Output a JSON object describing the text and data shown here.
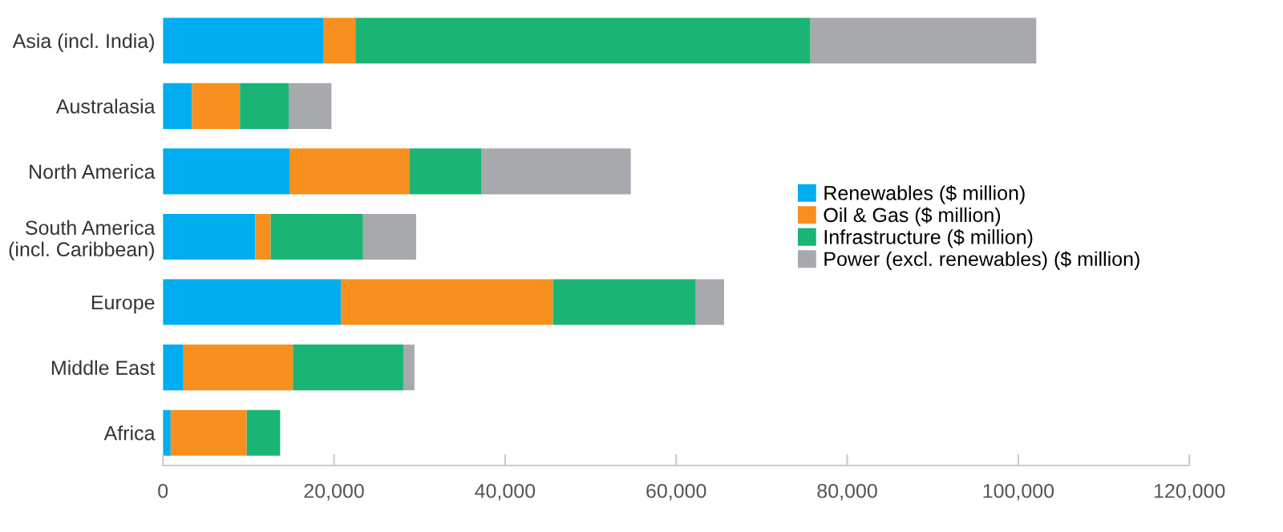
{
  "chart_data": {
    "type": "bar",
    "orientation": "horizontal",
    "stacked": true,
    "categories": [
      "Asia (incl. India)",
      "Australasia",
      "North America",
      "South America\n(incl. Caribbean)",
      "Europe",
      "Middle East",
      "Africa"
    ],
    "series": [
      {
        "name": "Renewables ($ million)",
        "color": "#00aeef",
        "values": [
          18800,
          3400,
          14800,
          10800,
          20800,
          2400,
          900
        ]
      },
      {
        "name": "Oil & Gas ($ million)",
        "color": "#f7901e",
        "values": [
          3700,
          5600,
          14000,
          1800,
          24800,
          12800,
          8900
        ]
      },
      {
        "name": "Infrastructure ($ million)",
        "color": "#1ab574",
        "values": [
          53200,
          5700,
          8400,
          10800,
          16700,
          12900,
          3900
        ]
      },
      {
        "name": "Power (excl. renewables) ($ million)",
        "color": "#a7a9ac",
        "values": [
          26400,
          5000,
          17500,
          6200,
          3300,
          1300,
          0
        ]
      }
    ],
    "xlim": [
      0,
      120000
    ],
    "xticks": [
      {
        "value": 0,
        "label": "0"
      },
      {
        "value": 20000,
        "label": "20,000"
      },
      {
        "value": 40000,
        "label": "40,000"
      },
      {
        "value": 60000,
        "label": "60,000"
      },
      {
        "value": 80000,
        "label": "80,000"
      },
      {
        "value": 100000,
        "label": "100,000"
      },
      {
        "value": 120000,
        "label": "120,000"
      }
    ],
    "grid": false,
    "legend": "right"
  }
}
